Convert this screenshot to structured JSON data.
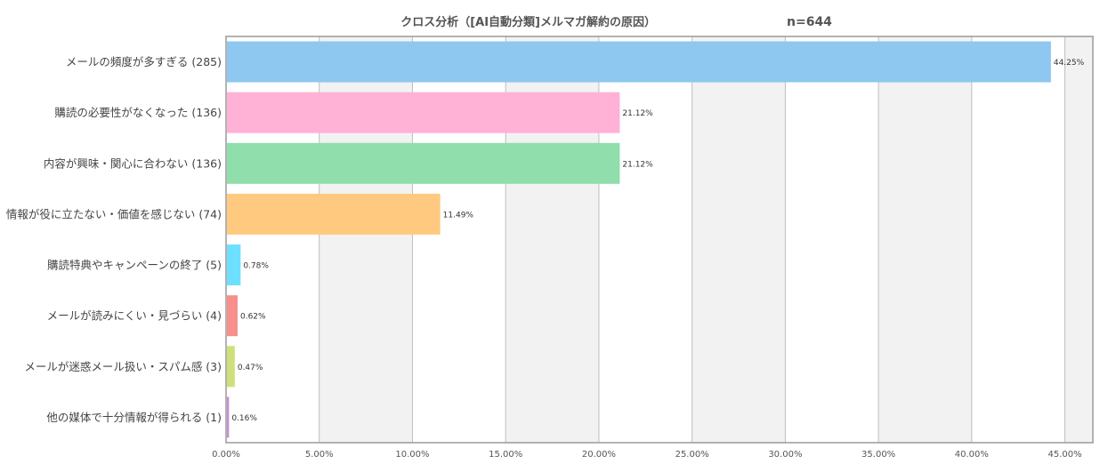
{
  "chart_data": {
    "type": "bar",
    "orientation": "horizontal",
    "title": "クロス分析（[AI自動分類]メルマガ解約の原因）",
    "sample_size": "n=644",
    "categories": [
      "メールの頻度が多すぎる (285)",
      "購読の必要性がなくなった (136)",
      "内容が興味・関心に合わない (136)",
      "情報が役に立たない・価値を感じない (74)",
      "購読特典やキャンペーンの終了 (5)",
      "メールが読みにくい・見づらい (4)",
      "メールが迷惑メール扱い・スパム感 (3)",
      "他の媒体で十分情報が得られる (1)"
    ],
    "values": [
      44.25,
      21.12,
      21.12,
      11.49,
      0.78,
      0.62,
      0.47,
      0.16
    ],
    "value_labels": [
      "44.25%",
      "21.12%",
      "21.12%",
      "11.49%",
      "0.78%",
      "0.62%",
      "0.47%",
      "0.16%"
    ],
    "colors": [
      "#8ec7ef",
      "#ffb1d6",
      "#8fdeab",
      "#ffca7f",
      "#6ee0ff",
      "#f78f8d",
      "#cfe07a",
      "#c78fd2"
    ],
    "xlim": [
      0,
      46.5
    ],
    "xticks": [
      0,
      5,
      10,
      15,
      20,
      25,
      30,
      35,
      40,
      45
    ],
    "xtick_labels": [
      "0.00%",
      "5.00%",
      "10.00%",
      "15.00%",
      "20.00%",
      "25.00%",
      "30.00%",
      "35.00%",
      "40.00%",
      "45.00%"
    ],
    "grid": true,
    "alternating_bands": true
  }
}
